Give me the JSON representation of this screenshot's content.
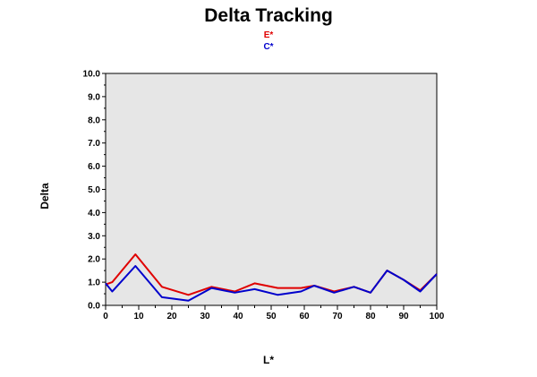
{
  "chart_data": {
    "type": "line",
    "title": "Delta Tracking",
    "xlabel": "L*",
    "ylabel": "Delta",
    "xlim": [
      0,
      100
    ],
    "ylim": [
      0,
      10
    ],
    "grid": false,
    "legend_placement": "top-center",
    "x_ticks": [
      "0",
      "10",
      "20",
      "30",
      "40",
      "50",
      "60",
      "70",
      "80",
      "90",
      "100"
    ],
    "y_ticks": [
      "0.0",
      "1.0",
      "2.0",
      "3.0",
      "4.0",
      "5.0",
      "6.0",
      "7.0",
      "8.0",
      "9.0",
      "10.0"
    ],
    "colors": {
      "plot_bg": "#e6e6e6"
    },
    "series": [
      {
        "name": "E*",
        "color": "#e00000",
        "x": [
          0,
          2,
          9,
          17,
          25,
          32,
          39,
          45,
          52,
          59,
          63,
          69,
          75,
          80,
          85,
          90,
          95,
          100
        ],
        "y": [
          0.9,
          1.0,
          2.2,
          0.8,
          0.45,
          0.8,
          0.6,
          0.95,
          0.75,
          0.75,
          0.85,
          0.6,
          0.8,
          0.55,
          1.5,
          1.1,
          0.65,
          1.35
        ]
      },
      {
        "name": "C*",
        "color": "#0000cc",
        "x": [
          0,
          2,
          9,
          17,
          25,
          32,
          39,
          45,
          52,
          59,
          63,
          69,
          75,
          80,
          85,
          90,
          95,
          100
        ],
        "y": [
          0.95,
          0.6,
          1.7,
          0.35,
          0.2,
          0.75,
          0.55,
          0.7,
          0.45,
          0.6,
          0.85,
          0.55,
          0.8,
          0.55,
          1.5,
          1.1,
          0.6,
          1.35
        ]
      }
    ]
  }
}
